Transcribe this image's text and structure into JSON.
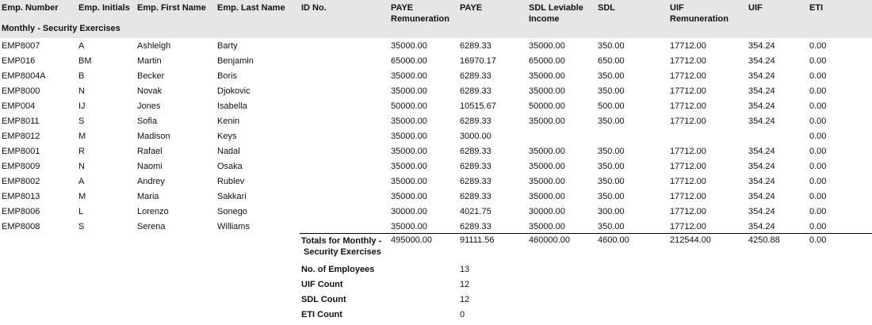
{
  "columns": [
    "Emp. Number",
    "Emp. Initials",
    "Emp. First Name",
    "Emp. Last Name",
    "ID No.",
    "PAYE\nRemuneration",
    "PAYE",
    "SDL Leviable\nIncome",
    "SDL",
    "UIF\nRemuneration",
    "UIF",
    "ETI"
  ],
  "group_label": "Monthly - Security Exercises",
  "rows": [
    [
      "EMP8007",
      "A",
      "Ashleigh",
      "Barty",
      "",
      "35000.00",
      "6289.33",
      "35000.00",
      "350.00",
      "17712.00",
      "354.24",
      "0.00"
    ],
    [
      "EMP016",
      "BM",
      "Martin",
      "Benjamin",
      "",
      "65000.00",
      "16970.17",
      "65000.00",
      "650.00",
      "17712.00",
      "354.24",
      "0.00"
    ],
    [
      "EMP8004A",
      "B",
      "Becker",
      "Boris",
      "",
      "35000.00",
      "6289.33",
      "35000.00",
      "350.00",
      "17712.00",
      "354.24",
      "0.00"
    ],
    [
      "EMP8000",
      "N",
      "Novak",
      "Djokovic",
      "",
      "35000.00",
      "6289.33",
      "35000.00",
      "350.00",
      "17712.00",
      "354.24",
      "0.00"
    ],
    [
      "EMP004",
      "IJ",
      "Jones",
      "Isabella",
      "",
      "50000.00",
      "10515.67",
      "50000.00",
      "500.00",
      "17712.00",
      "354.24",
      "0.00"
    ],
    [
      "EMP8011",
      "S",
      "Sofia",
      "Kenin",
      "",
      "35000.00",
      "6289.33",
      "35000.00",
      "350.00",
      "17712.00",
      "354.24",
      "0.00"
    ],
    [
      "EMP8012",
      "M",
      "Madison",
      "Keys",
      "",
      "35000.00",
      "3000.00",
      "",
      "",
      "",
      "",
      "0.00"
    ],
    [
      "EMP8001",
      "R",
      "Rafael",
      "Nadal",
      "",
      "35000.00",
      "6289.33",
      "35000.00",
      "350.00",
      "17712.00",
      "354.24",
      "0.00"
    ],
    [
      "EMP8009",
      "N",
      "Naomi",
      "Osaka",
      "",
      "35000.00",
      "6289.33",
      "35000.00",
      "350.00",
      "17712.00",
      "354.24",
      "0.00"
    ],
    [
      "EMP8002",
      "A",
      "Andrey",
      "Rublev",
      "",
      "35000.00",
      "6289.33",
      "35000.00",
      "350.00",
      "17712.00",
      "354.24",
      "0.00"
    ],
    [
      "EMP8013",
      "M",
      "Maria",
      "Sakkari",
      "",
      "35000.00",
      "6289.33",
      "35000.00",
      "350.00",
      "17712.00",
      "354.24",
      "0.00"
    ],
    [
      "EMP8006",
      "L",
      "Lorenzo",
      "Sonego",
      "",
      "30000.00",
      "4021.75",
      "30000.00",
      "300.00",
      "17712.00",
      "354.24",
      "0.00"
    ],
    [
      "EMP8008",
      "S",
      "Serena",
      "Williams",
      "",
      "35000.00",
      "6289.33",
      "35000.00",
      "350.00",
      "17712.00",
      "354.24",
      "0.00"
    ]
  ],
  "totals": {
    "label": "Totals for Monthly -\n Security Exercises",
    "paye_remuneration": "495000.00",
    "paye": "91111.56",
    "sdl_leviable_income": "460000.00",
    "sdl": "4600.00",
    "uif_remuneration": "212544.00",
    "uif": "4250.88",
    "eti": "0.00"
  },
  "summary": [
    {
      "label": "No. of Employees",
      "value": "13"
    },
    {
      "label": "UIF Count",
      "value": "12"
    },
    {
      "label": "SDL Count",
      "value": "12"
    },
    {
      "label": "ETI Count",
      "value": "0"
    }
  ]
}
